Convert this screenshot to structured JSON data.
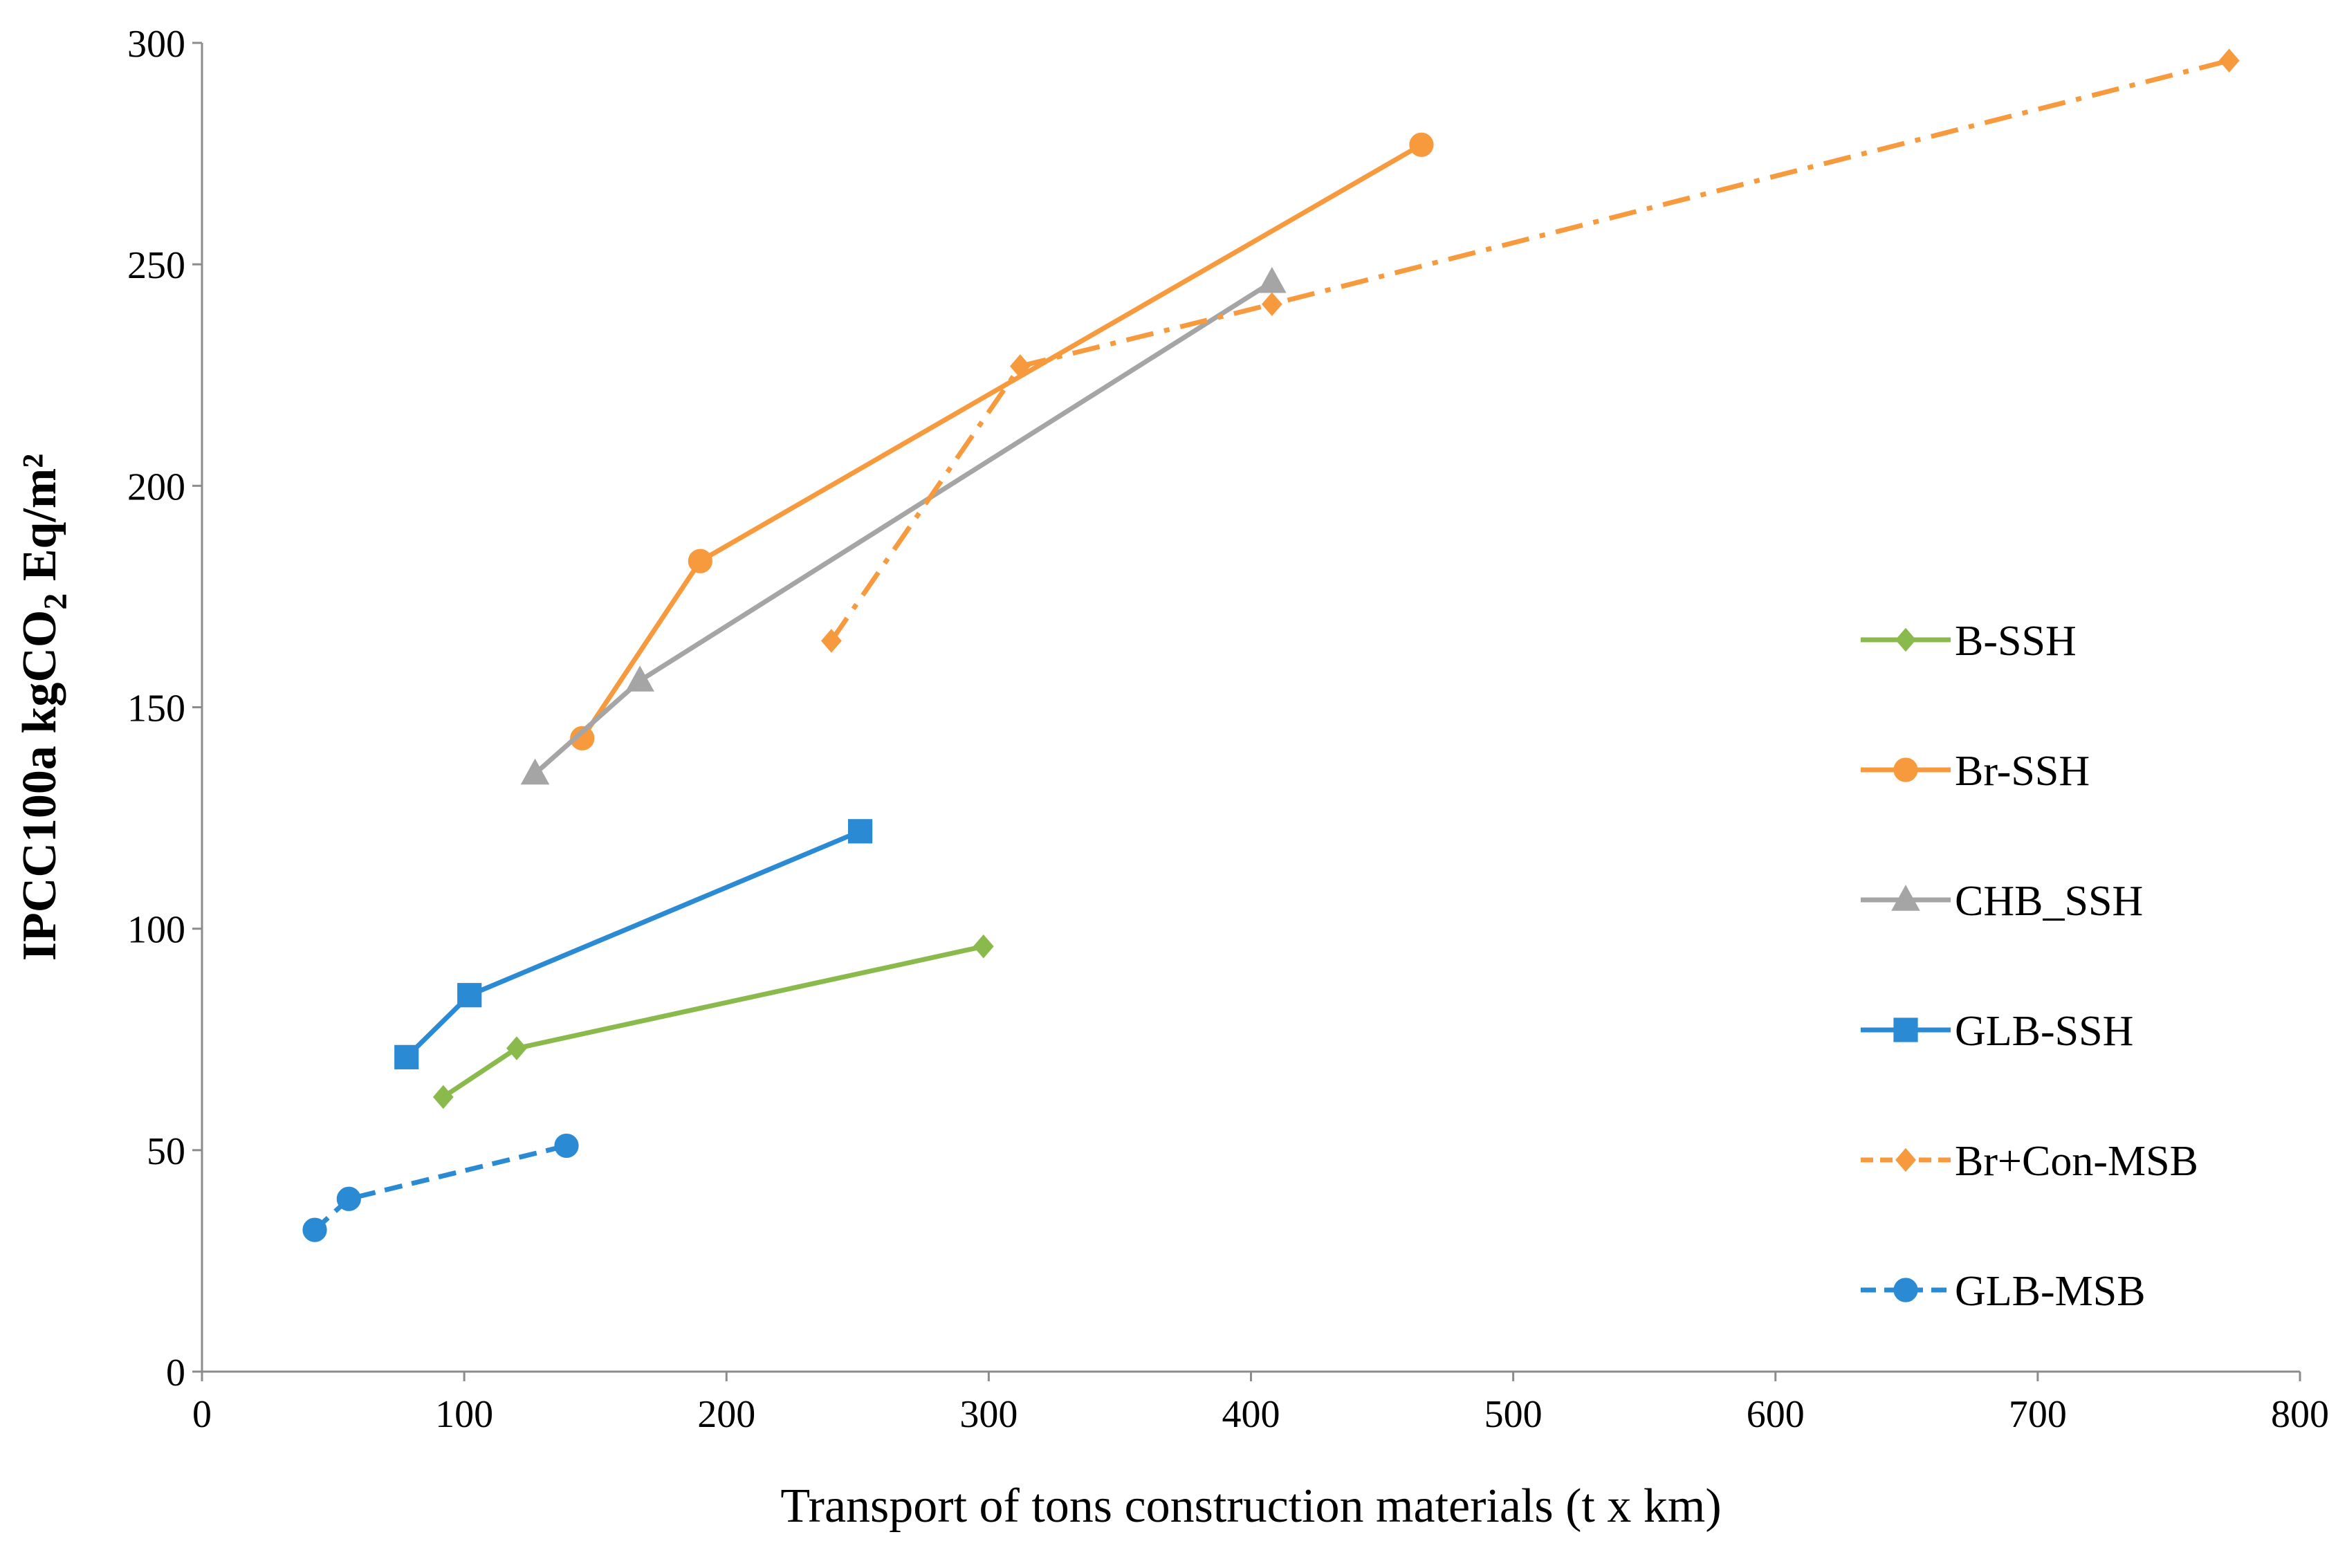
{
  "chart_data": {
    "type": "line",
    "title": "",
    "xlabel": "Transport of tons construction materials (t x km)",
    "ylabel": {
      "prefix": "IPCC100a kgCO",
      "subscript": "2",
      "suffix": " Eq/m²"
    },
    "xlim": [
      0,
      800
    ],
    "ylim": [
      0,
      300
    ],
    "x_ticks": [
      0,
      100,
      200,
      300,
      400,
      500,
      600,
      700,
      800
    ],
    "y_ticks": [
      0,
      50,
      100,
      150,
      200,
      250,
      300
    ],
    "x_tick_labels": [
      "0",
      "100",
      "200",
      "300",
      "400",
      "500",
      "600",
      "700",
      "800"
    ],
    "y_tick_labels": [
      "0",
      "50",
      "100",
      "150",
      "200",
      "250",
      "300"
    ],
    "grid": false,
    "legend_position": "right",
    "series": [
      {
        "name": "B-SSH",
        "color": "#8bba4c",
        "marker": "diamond",
        "line_style": "solid",
        "x": [
          92,
          120,
          298
        ],
        "y": [
          62,
          73,
          96
        ]
      },
      {
        "name": "Br-SSH",
        "color": "#f79a3e",
        "marker": "circle",
        "line_style": "solid",
        "x": [
          145,
          190,
          465
        ],
        "y": [
          143,
          183,
          277
        ]
      },
      {
        "name": "CHB_SSH",
        "color": "#a5a5a5",
        "marker": "triangle",
        "line_style": "solid",
        "x": [
          127,
          167,
          408
        ],
        "y": [
          135,
          156,
          246
        ]
      },
      {
        "name": "GLB-SSH",
        "color": "#2a8ad4",
        "marker": "square",
        "line_style": "solid",
        "x": [
          78,
          102,
          251
        ],
        "y": [
          71,
          85,
          122
        ]
      },
      {
        "name": "Br+Con-MSB",
        "color": "#f79a3e",
        "marker": "diamond",
        "line_style": "dashdot",
        "x": [
          240,
          312,
          408,
          773
        ],
        "y": [
          165,
          227,
          241,
          296
        ]
      },
      {
        "name": "GLB-MSB",
        "color": "#2a8ad4",
        "marker": "circle",
        "line_style": "dashed",
        "x": [
          43,
          56,
          139
        ],
        "y": [
          32,
          39,
          51
        ]
      }
    ]
  }
}
